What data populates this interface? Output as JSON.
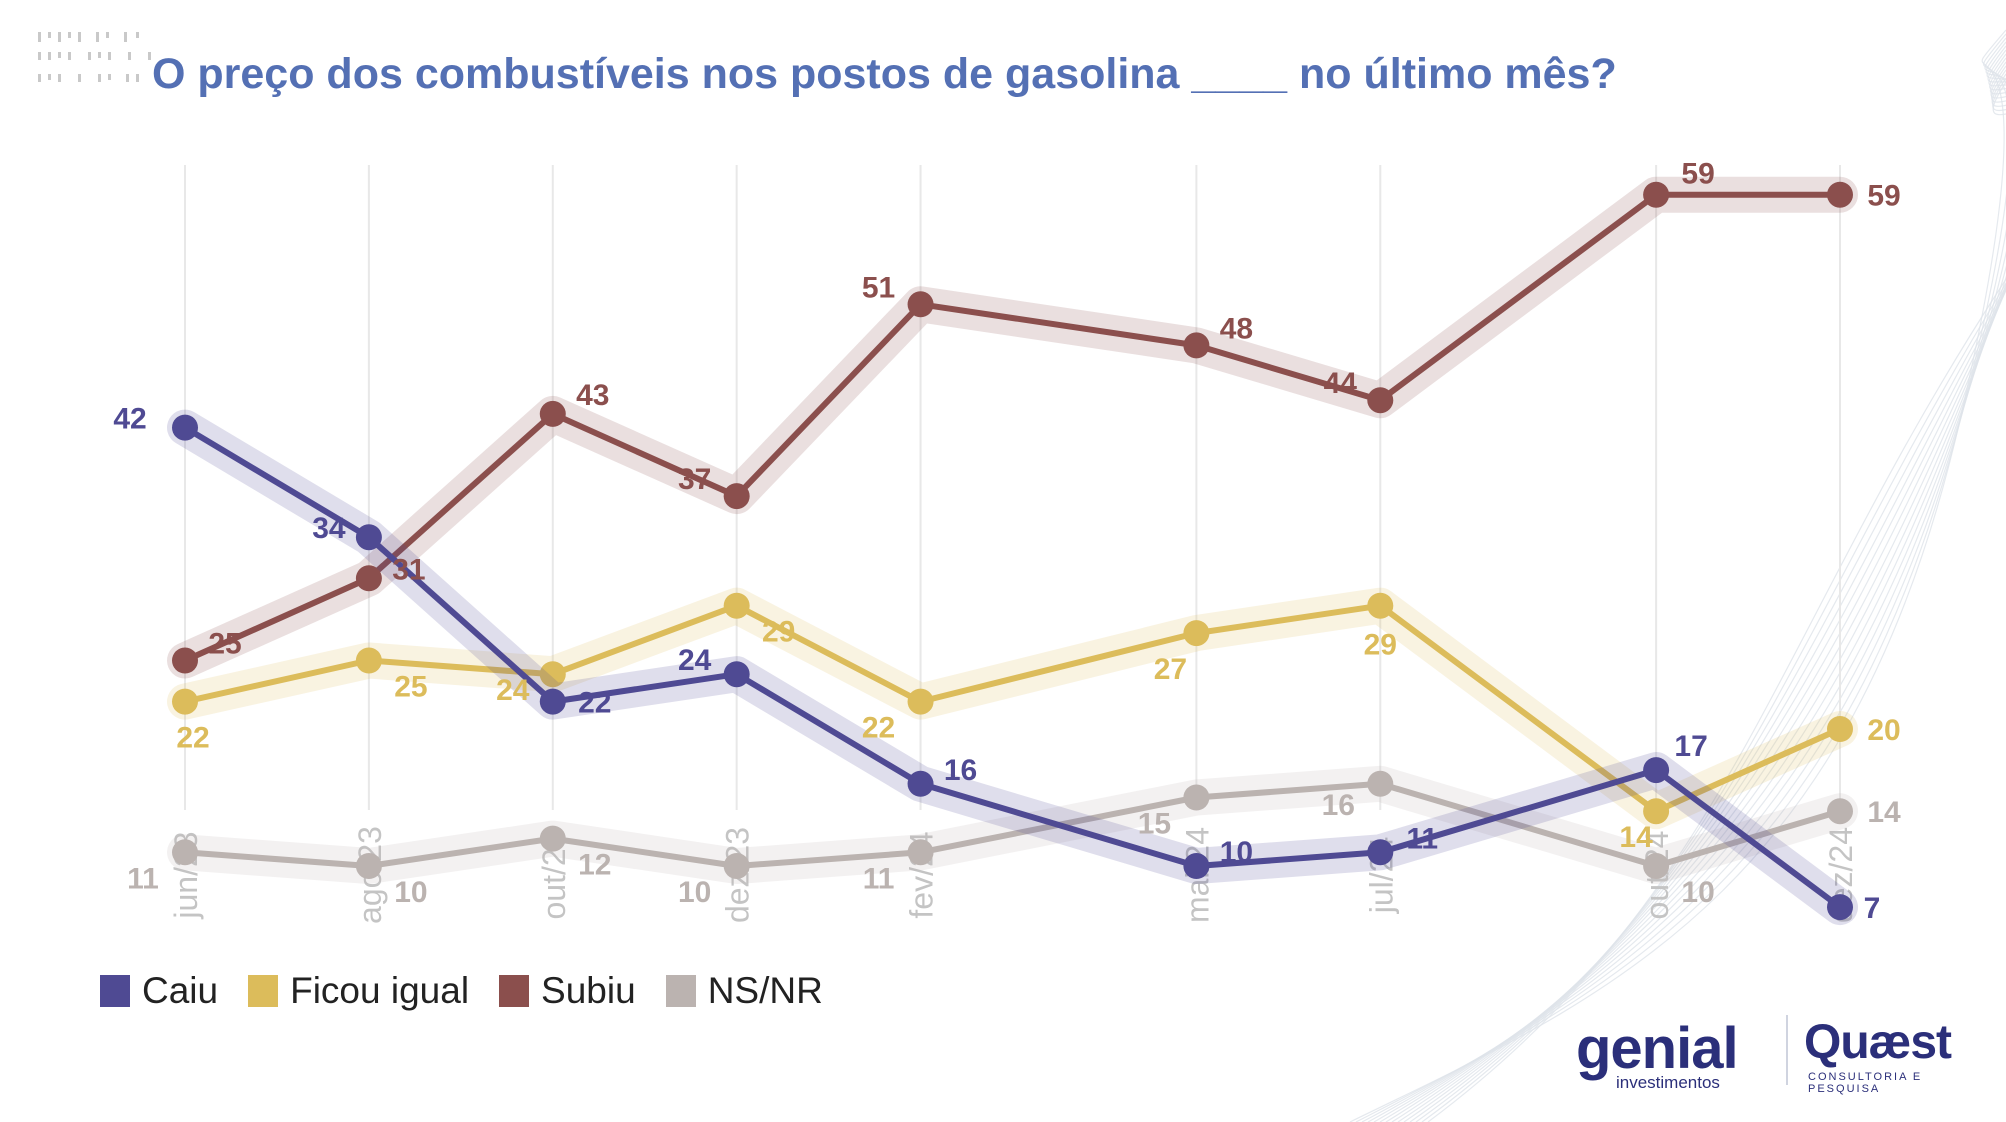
{
  "title": "O preço dos combustíveis nos postos de gasolina ____ no último mês?",
  "colors": {
    "title": "#5470b4",
    "grid": "#e8e8e8",
    "axis_label": "#c4c4c4"
  },
  "logos": {
    "genial": "genial",
    "genial_sub": "investimentos",
    "quaest": "Quæst",
    "quaest_sub": "CONSULTORIA E PESQUISA"
  },
  "chart_data": {
    "type": "line",
    "title": "O preço dos combustíveis nos postos de gasolina ____ no último mês?",
    "xlabel": "",
    "ylabel": "",
    "categories": [
      "jun/23",
      "ago/23",
      "out/23",
      "dez/23",
      "fev/24",
      "mai/24",
      "jul/24",
      "out/24",
      "dez/24"
    ],
    "x_dates": [
      "2023-06",
      "2023-08",
      "2023-10",
      "2023-12",
      "2024-02",
      "2024-05",
      "2024-07",
      "2024-10",
      "2024-12"
    ],
    "ylim": [
      0,
      70
    ],
    "grid": "vertical",
    "legend_position": "bottom-left",
    "series": [
      {
        "name": "Caiu",
        "color": "#4f4a93",
        "values": [
          42,
          34,
          22,
          24,
          16,
          10,
          11,
          17,
          7
        ]
      },
      {
        "name": "Ficou igual",
        "color": "#dcbc5b",
        "values": [
          22,
          25,
          24,
          29,
          22,
          27,
          29,
          14,
          20
        ]
      },
      {
        "name": "Subiu",
        "color": "#8b4f4d",
        "values": [
          25,
          31,
          43,
          37,
          51,
          48,
          44,
          59,
          59
        ]
      },
      {
        "name": "NS/NR",
        "color": "#bbb3b0",
        "values": [
          11,
          10,
          12,
          10,
          11,
          15,
          16,
          10,
          14
        ]
      }
    ]
  }
}
